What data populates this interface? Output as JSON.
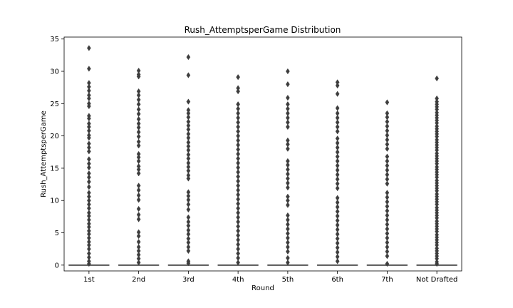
{
  "chart_data": {
    "type": "box",
    "title": "Rush_AttemptsperGame Distribution",
    "xlabel": "Round",
    "ylabel": "Rush_AttemptsperGame",
    "categories": [
      "1st",
      "2nd",
      "3rd",
      "4th",
      "5th",
      "6th",
      "7th",
      "Not Drafted"
    ],
    "ylim": [
      -0.9,
      35.3
    ],
    "yticks": [
      0,
      5,
      10,
      15,
      20,
      25,
      30,
      35
    ],
    "ytick_labels": [
      "0",
      "5",
      "10",
      "15",
      "20",
      "25",
      "30",
      "35"
    ],
    "box_color": "#3d3d3d",
    "series": [
      {
        "name": "1st",
        "q1": 0,
        "median": 0,
        "q3": 0,
        "whisker_low": 0,
        "whisker_high": 0,
        "outliers": [
          33.6,
          30.4,
          28.2,
          27.6,
          27.0,
          26.3,
          25.8,
          25.0,
          24.6,
          23.1,
          22.7,
          21.9,
          21.4,
          20.8,
          20.1,
          19.7,
          18.8,
          18.2,
          17.6,
          16.4,
          15.7,
          15.1,
          14.2,
          13.6,
          12.9,
          12.1,
          11.2,
          10.6,
          10.0,
          9.4,
          8.8,
          8.1,
          7.6,
          7.0,
          6.4,
          5.9,
          5.3,
          4.8,
          4.2,
          3.6,
          3.1,
          2.5,
          1.8,
          1.2,
          0.6,
          0.2
        ]
      },
      {
        "name": "2nd",
        "q1": 0,
        "median": 0,
        "q3": 0,
        "whisker_low": 0,
        "whisker_high": 0,
        "outliers": [
          30.1,
          29.5,
          29.2,
          26.9,
          26.3,
          25.6,
          24.9,
          24.1,
          23.4,
          22.6,
          21.9,
          21.3,
          20.6,
          19.9,
          19.1,
          18.5,
          17.2,
          16.7,
          16.1,
          15.3,
          14.8,
          14.2,
          12.3,
          11.6,
          10.8,
          10.1,
          8.7,
          7.8,
          7.1,
          5.1,
          4.5,
          3.6,
          2.8,
          2.2,
          1.6,
          1.0,
          0.4
        ]
      },
      {
        "name": "3rd",
        "q1": 0,
        "median": 0,
        "q3": 0,
        "whisker_low": 0,
        "whisker_high": 0,
        "outliers": [
          32.2,
          29.4,
          25.3,
          24.0,
          23.5,
          22.9,
          22.2,
          21.6,
          21.0,
          20.3,
          19.7,
          19.0,
          18.4,
          17.8,
          17.1,
          16.5,
          15.8,
          15.2,
          14.6,
          13.9,
          13.4,
          11.3,
          10.7,
          10.1,
          9.4,
          8.6,
          7.4,
          6.7,
          6.1,
          5.4,
          4.8,
          4.1,
          3.5,
          2.8,
          2.2,
          0.6,
          0.3
        ]
      },
      {
        "name": "4th",
        "q1": 0,
        "median": 0,
        "q3": 0,
        "whisker_low": 0,
        "whisker_high": 0,
        "outliers": [
          29.1,
          27.4,
          26.9,
          24.9,
          24.2,
          23.5,
          22.8,
          22.1,
          21.4,
          20.7,
          20.0,
          19.3,
          18.6,
          17.9,
          17.2,
          16.5,
          15.8,
          15.1,
          14.4,
          13.7,
          13.0,
          12.3,
          11.6,
          10.9,
          10.2,
          9.5,
          8.8,
          8.1,
          7.4,
          6.7,
          6.0,
          5.3,
          4.6,
          3.9,
          3.2,
          2.5,
          1.8,
          1.1,
          0.4
        ]
      },
      {
        "name": "5th",
        "q1": 0,
        "median": 0,
        "q3": 0,
        "whisker_low": 0,
        "whisker_high": 0,
        "outliers": [
          30.0,
          28.0,
          25.9,
          24.9,
          24.2,
          23.5,
          22.8,
          22.1,
          21.4,
          19.3,
          18.7,
          18.0,
          16.1,
          15.5,
          14.8,
          14.1,
          13.4,
          12.7,
          12.0,
          10.6,
          10.0,
          9.3,
          7.7,
          7.0,
          6.3,
          5.6,
          4.9,
          4.2,
          3.5,
          2.8,
          2.1,
          1.1,
          0.4
        ]
      },
      {
        "name": "6th",
        "q1": 0,
        "median": 0,
        "q3": 0,
        "whisker_low": 0,
        "whisker_high": 0,
        "outliers": [
          28.3,
          27.8,
          26.5,
          24.3,
          23.5,
          22.8,
          22.1,
          21.4,
          20.7,
          19.6,
          18.9,
          18.2,
          17.5,
          16.8,
          16.1,
          15.4,
          14.7,
          14.0,
          13.3,
          12.6,
          11.9,
          10.4,
          9.7,
          9.0,
          8.3,
          7.6,
          6.9,
          6.2,
          5.5,
          4.8,
          4.1,
          3.4,
          2.7,
          2.0,
          1.3,
          0.6
        ]
      },
      {
        "name": "7th",
        "q1": 0,
        "median": 0,
        "q3": 0,
        "whisker_low": 0,
        "whisker_high": 0,
        "outliers": [
          25.2,
          23.5,
          22.9,
          22.2,
          21.5,
          20.8,
          20.1,
          19.4,
          18.7,
          18.0,
          16.8,
          16.1,
          15.4,
          14.7,
          14.0,
          13.3,
          12.6,
          11.2,
          10.5,
          9.8,
          9.1,
          8.4,
          7.7,
          7.0,
          6.3,
          5.6,
          4.9,
          4.2,
          3.5,
          2.8,
          2.1,
          1.4,
          0.2
        ]
      },
      {
        "name": "Not Drafted",
        "q1": 0,
        "median": 0,
        "q3": 0,
        "whisker_low": 0,
        "whisker_high": 0,
        "outliers": [
          28.9,
          25.8,
          25.3,
          24.9,
          24.5,
          24.1,
          23.6,
          23.2,
          22.8,
          22.4,
          22.0,
          21.5,
          21.1,
          20.7,
          20.3,
          19.9,
          19.4,
          19.0,
          18.6,
          18.2,
          17.8,
          17.3,
          16.9,
          16.5,
          16.1,
          15.7,
          15.2,
          14.8,
          14.4,
          14.0,
          13.6,
          13.1,
          12.7,
          12.3,
          11.9,
          11.5,
          11.0,
          10.6,
          10.2,
          9.8,
          9.4,
          8.9,
          8.5,
          8.1,
          7.7,
          7.3,
          6.8,
          6.4,
          6.0,
          5.6,
          5.2,
          4.7,
          4.3,
          3.9,
          3.5,
          3.1,
          2.6,
          2.2,
          1.8,
          1.4,
          1.0,
          0.5,
          0.2
        ]
      }
    ]
  }
}
